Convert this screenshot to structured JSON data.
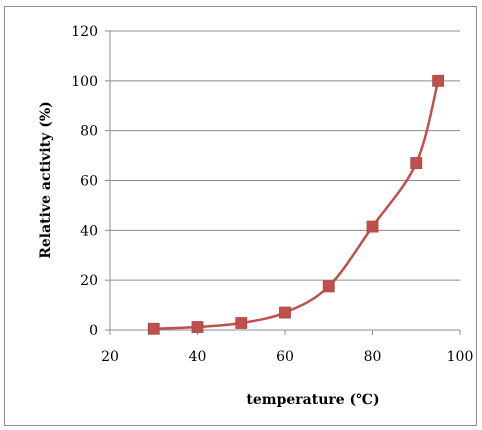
{
  "chart_data": {
    "type": "line",
    "xlabel": "temperature (℃)",
    "ylabel": "Relative activity (%)",
    "xlim": [
      20,
      100
    ],
    "ylim": [
      0,
      120
    ],
    "xticks": [
      20,
      40,
      60,
      80,
      100
    ],
    "yticks": [
      0,
      20,
      40,
      60,
      80,
      100,
      120
    ],
    "grid": "horizontal",
    "legend": "none",
    "smooth": true,
    "series": [
      {
        "color": "#c0504d",
        "marker": "square",
        "x": [
          30,
          40,
          50,
          60,
          70,
          80,
          90,
          95
        ],
        "y": [
          0.5,
          1.2,
          2.8,
          7,
          17.5,
          41.5,
          67,
          100
        ]
      }
    ]
  }
}
